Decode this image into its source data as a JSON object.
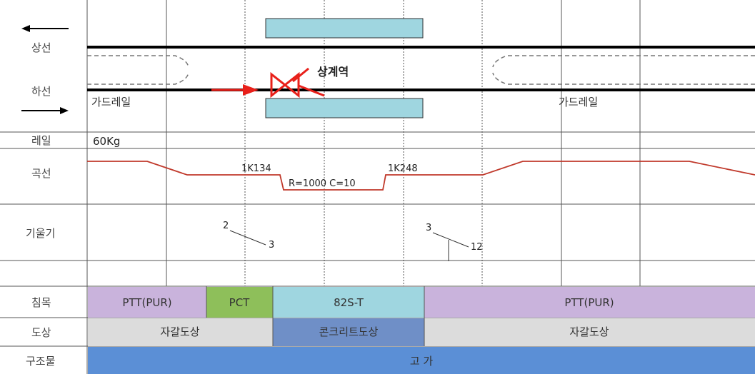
{
  "row_labels": {
    "up_line": "상선",
    "down_line": "하선",
    "rail": "레일",
    "curve": "곡선",
    "gradient": "기울기",
    "sleeper": "침목",
    "ballast": "도상",
    "structure": "구조물"
  },
  "track": {
    "station": "상계역",
    "guardrail_left": "가드레일",
    "guardrail_right": "가드레일",
    "rail_type": "60Kg"
  },
  "curve": {
    "start_km": "1K134",
    "end_km": "1K248",
    "radius_cant": "R=1000  C=10"
  },
  "gradient": {
    "first_rise": "2",
    "first_run": "3",
    "second_rise": "3",
    "second_run": "12"
  },
  "sleepers": [
    {
      "label": "PTT(PUR)",
      "color": "#c9b3dc"
    },
    {
      "label": "PCT",
      "color": "#8ebf5a"
    },
    {
      "label": "82S-T",
      "color": "#9fd6e0"
    },
    {
      "label": "PTT(PUR)",
      "color": "#c9b3dc"
    }
  ],
  "ballast": [
    {
      "label": "자갈도상",
      "color": "#dcdcdc"
    },
    {
      "label": "콘크리트도상",
      "color": "#6f8fc7"
    },
    {
      "label": "자갈도상",
      "color": "#dcdcdc"
    }
  ],
  "structure": {
    "label": "고 가",
    "color": "#5b8fd6"
  },
  "colors": {
    "platform": "#9fd6e0",
    "curve_line": "#c0392b",
    "arrow_red": "#e8201a",
    "grid": "#555555"
  }
}
